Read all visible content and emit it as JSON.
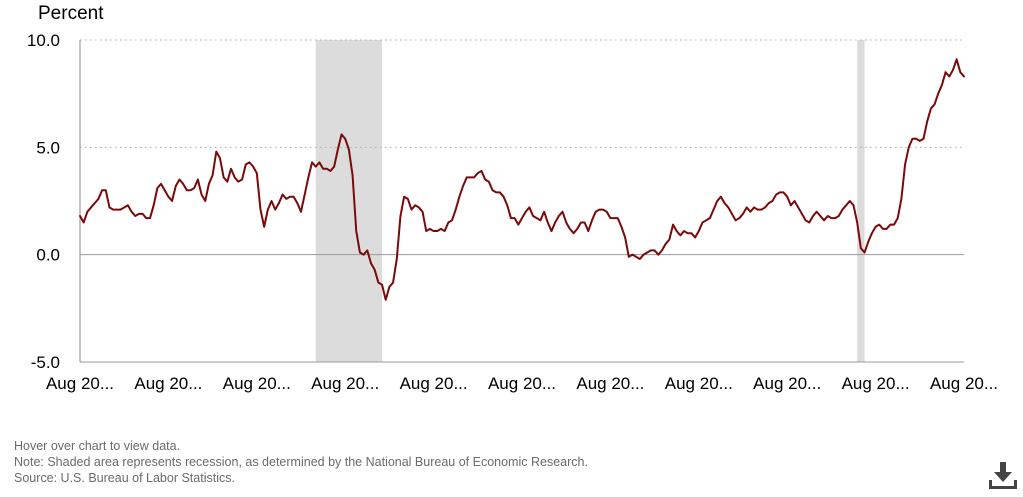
{
  "chart_data": {
    "type": "line",
    "ylabel": "Percent",
    "ylim": [
      -5.0,
      10.0
    ],
    "yticks": [
      "10.0",
      "5.0",
      "0.0",
      "-5.0"
    ],
    "ytick_values": [
      10,
      5,
      0,
      -5
    ],
    "xticks": [
      "Aug 20...",
      "Aug 20...",
      "Aug 20...",
      "Aug 20...",
      "Aug 20...",
      "Aug 20...",
      "Aug 20...",
      "Aug 20...",
      "Aug 20...",
      "Aug 20...",
      "Aug 20..."
    ],
    "x_range_months": [
      0,
      240
    ],
    "gridlines": "horizontal dotted",
    "series": [
      {
        "name": "Percent",
        "color": "#7a0a0a",
        "values": [
          1.8,
          1.5,
          2.0,
          2.2,
          2.4,
          2.6,
          3.0,
          3.0,
          2.2,
          2.1,
          2.1,
          2.1,
          2.2,
          2.3,
          2.0,
          1.8,
          1.9,
          1.9,
          1.7,
          1.7,
          2.3,
          3.1,
          3.3,
          3.0,
          2.7,
          2.5,
          3.2,
          3.5,
          3.3,
          3.0,
          3.0,
          3.1,
          3.5,
          2.8,
          2.5,
          3.3,
          3.7,
          4.8,
          4.5,
          3.6,
          3.4,
          4.0,
          3.6,
          3.4,
          3.5,
          4.2,
          4.3,
          4.1,
          3.8,
          2.1,
          1.3,
          2.1,
          2.5,
          2.1,
          2.4,
          2.8,
          2.6,
          2.7,
          2.7,
          2.4,
          2.0,
          2.8,
          3.6,
          4.3,
          4.1,
          4.3,
          4.0,
          4.0,
          3.9,
          4.1,
          4.9,
          5.6,
          5.4,
          4.9,
          3.7,
          1.1,
          0.1,
          0.0,
          0.2,
          -0.4,
          -0.7,
          -1.3,
          -1.4,
          -2.1,
          -1.5,
          -1.3,
          -0.2,
          1.8,
          2.7,
          2.6,
          2.1,
          2.3,
          2.2,
          2.0,
          1.1,
          1.2,
          1.1,
          1.1,
          1.2,
          1.1,
          1.5,
          1.6,
          2.1,
          2.7,
          3.2,
          3.6,
          3.6,
          3.6,
          3.8,
          3.9,
          3.5,
          3.4,
          3.0,
          2.9,
          2.9,
          2.7,
          2.3,
          1.7,
          1.7,
          1.4,
          1.7,
          2.0,
          2.2,
          1.8,
          1.7,
          1.6,
          2.0,
          1.5,
          1.1,
          1.5,
          1.8,
          2.0,
          1.5,
          1.2,
          1.0,
          1.2,
          1.5,
          1.5,
          1.1,
          1.6,
          2.0,
          2.1,
          2.1,
          2.0,
          1.7,
          1.7,
          1.7,
          1.3,
          0.8,
          -0.1,
          0.0,
          -0.1,
          -0.2,
          0.0,
          0.1,
          0.2,
          0.2,
          0.0,
          0.2,
          0.5,
          0.7,
          1.4,
          1.1,
          0.9,
          1.1,
          1.0,
          1.0,
          0.8,
          1.1,
          1.5,
          1.6,
          1.7,
          2.1,
          2.5,
          2.7,
          2.4,
          2.2,
          1.9,
          1.6,
          1.7,
          1.9,
          2.2,
          2.0,
          2.2,
          2.1,
          2.1,
          2.2,
          2.4,
          2.5,
          2.8,
          2.9,
          2.9,
          2.7,
          2.3,
          2.5,
          2.2,
          1.9,
          1.6,
          1.5,
          1.8,
          2.0,
          1.8,
          1.6,
          1.8,
          1.7,
          1.7,
          1.8,
          2.1,
          2.3,
          2.5,
          2.3,
          1.5,
          0.3,
          0.1,
          0.6,
          1.0,
          1.3,
          1.4,
          1.2,
          1.2,
          1.4,
          1.4,
          1.7,
          2.6,
          4.2,
          5.0,
          5.4,
          5.4,
          5.3,
          5.4,
          6.2,
          6.8,
          7.0,
          7.5,
          7.9,
          8.5,
          8.3,
          8.6,
          9.1,
          8.5,
          8.3
        ]
      }
    ],
    "recession_bands": [
      {
        "start": 64,
        "end": 82
      },
      {
        "start": 211,
        "end": 213
      }
    ]
  },
  "footnotes": {
    "hover": "Hover over chart to view data.",
    "note": "Note: Shaded area represents recession, as determined by the National Bureau of Economic Research.",
    "source": "Source: U.S. Bureau of Labor Statistics."
  },
  "download_icon": "download-icon"
}
